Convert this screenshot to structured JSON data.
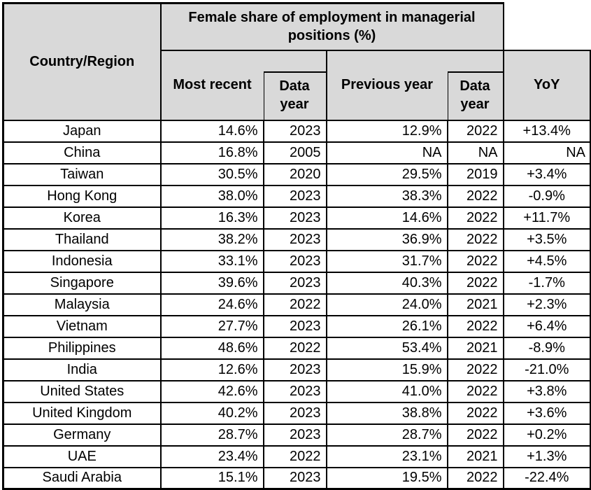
{
  "chart_data": {
    "type": "table",
    "title": "Female share of employment in managerial positions (%)",
    "corner_header": "Country/Region",
    "columns": [
      "Country/Region",
      "Most recent",
      "Data year",
      "Previous year",
      "Data year",
      "YoY"
    ],
    "rows": [
      [
        "Japan",
        "14.6%",
        "2023",
        "12.9%",
        "2022",
        "+13.4%"
      ],
      [
        "China",
        "16.8%",
        "2005",
        "NA",
        "NA",
        "NA"
      ],
      [
        "Taiwan",
        "30.5%",
        "2020",
        "29.5%",
        "2019",
        "+3.4%"
      ],
      [
        "Hong Kong",
        "38.0%",
        "2023",
        "38.3%",
        "2022",
        "-0.9%"
      ],
      [
        "Korea",
        "16.3%",
        "2023",
        "14.6%",
        "2022",
        "+11.7%"
      ],
      [
        "Thailand",
        "38.2%",
        "2023",
        "36.9%",
        "2022",
        "+3.5%"
      ],
      [
        "Indonesia",
        "33.1%",
        "2023",
        "31.7%",
        "2022",
        "+4.5%"
      ],
      [
        "Singapore",
        "39.6%",
        "2023",
        "40.3%",
        "2022",
        "-1.7%"
      ],
      [
        "Malaysia",
        "24.6%",
        "2022",
        "24.0%",
        "2021",
        "+2.3%"
      ],
      [
        "Vietnam",
        "27.7%",
        "2023",
        "26.1%",
        "2022",
        "+6.4%"
      ],
      [
        "Philippines",
        "48.6%",
        "2022",
        "53.4%",
        "2021",
        "-8.9%"
      ],
      [
        "India",
        "12.6%",
        "2023",
        "15.9%",
        "2022",
        "-21.0%"
      ],
      [
        "United States",
        "42.6%",
        "2023",
        "41.0%",
        "2022",
        "+3.8%"
      ],
      [
        "United Kingdom",
        "40.2%",
        "2023",
        "38.8%",
        "2022",
        "+3.6%"
      ],
      [
        "Germany",
        "28.7%",
        "2023",
        "28.7%",
        "2022",
        "+0.2%"
      ],
      [
        "UAE",
        "23.4%",
        "2022",
        "23.1%",
        "2021",
        "+1.3%"
      ],
      [
        "Saudi Arabia",
        "15.1%",
        "2023",
        "19.5%",
        "2022",
        "-22.4%"
      ]
    ]
  },
  "colors": {
    "header_bg": "#d9d9d9",
    "border": "#000000",
    "cell_bg": "#ffffff",
    "text": "#000000"
  }
}
